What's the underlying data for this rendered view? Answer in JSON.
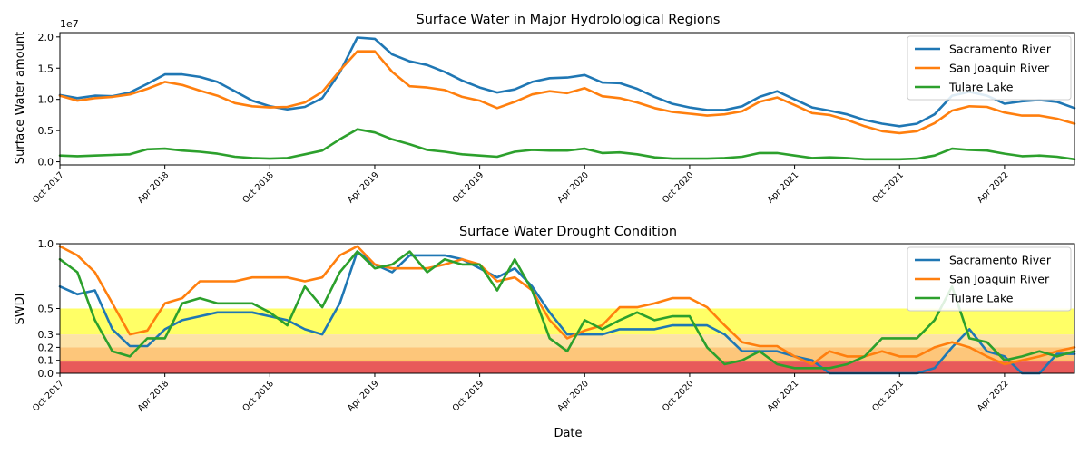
{
  "colors": {
    "sacramento": "#1f77b4",
    "san_joaquin": "#ff7f0e",
    "tulare": "#2ca02c",
    "band_d0": "#ffff66",
    "band_d1": "#fde3a7",
    "band_d2": "#fdc67a",
    "band_d3": "#ffa500",
    "band_d4": "#e85a5a"
  },
  "chart_data": [
    {
      "type": "line",
      "title": "Surface Water in Major Hydrolological Regions",
      "xlabel": "",
      "ylabel": "Surface Water amount",
      "y_offset_label": "1e7",
      "y_scale": 10000000,
      "x_ticks": [
        "Oct 2017",
        "Apr 2018",
        "Oct 2018",
        "Apr 2019",
        "Oct 2019",
        "Apr 2020",
        "Oct 2020",
        "Apr 2021",
        "Oct 2021",
        "Apr 2022"
      ],
      "x_start": "2017-10",
      "x_step": "1 month",
      "xlim": [
        0,
        58
      ],
      "ylim": [
        -0.05,
        2.07
      ],
      "y_ticks": [
        "0.0",
        "0.5",
        "1.0",
        "1.5",
        "2.0"
      ],
      "legend_position": "top-right",
      "grid": false,
      "series": [
        {
          "name": "Sacramento River",
          "color_key": "sacramento",
          "values": [
            1.07,
            1.02,
            1.06,
            1.05,
            1.11,
            1.25,
            1.4,
            1.4,
            1.36,
            1.28,
            1.13,
            0.98,
            0.89,
            0.84,
            0.88,
            1.02,
            1.43,
            1.99,
            1.97,
            1.72,
            1.61,
            1.55,
            1.44,
            1.3,
            1.19,
            1.11,
            1.16,
            1.28,
            1.34,
            1.35,
            1.39,
            1.27,
            1.26,
            1.17,
            1.04,
            0.93,
            0.87,
            0.83,
            0.83,
            0.89,
            1.04,
            1.13,
            1.0,
            0.87,
            0.82,
            0.76,
            0.67,
            0.61,
            0.57,
            0.61,
            0.76,
            1.06,
            1.12,
            1.06,
            0.93,
            0.97,
            0.99,
            0.96,
            0.86
          ]
        },
        {
          "name": "San Joaquin River",
          "color_key": "san_joaquin",
          "values": [
            1.06,
            0.98,
            1.02,
            1.04,
            1.08,
            1.17,
            1.28,
            1.23,
            1.14,
            1.06,
            0.94,
            0.89,
            0.87,
            0.88,
            0.95,
            1.12,
            1.46,
            1.77,
            1.77,
            1.44,
            1.21,
            1.19,
            1.15,
            1.04,
            0.98,
            0.86,
            0.96,
            1.08,
            1.13,
            1.1,
            1.18,
            1.05,
            1.02,
            0.95,
            0.86,
            0.8,
            0.77,
            0.74,
            0.76,
            0.81,
            0.96,
            1.03,
            0.91,
            0.78,
            0.75,
            0.67,
            0.57,
            0.49,
            0.46,
            0.49,
            0.62,
            0.82,
            0.89,
            0.88,
            0.79,
            0.74,
            0.74,
            0.69,
            0.61
          ]
        },
        {
          "name": "Tulare Lake",
          "color_key": "tulare",
          "values": [
            0.1,
            0.09,
            0.1,
            0.11,
            0.12,
            0.2,
            0.21,
            0.18,
            0.16,
            0.13,
            0.08,
            0.06,
            0.05,
            0.06,
            0.12,
            0.18,
            0.36,
            0.52,
            0.47,
            0.36,
            0.28,
            0.19,
            0.16,
            0.12,
            0.1,
            0.08,
            0.16,
            0.19,
            0.18,
            0.18,
            0.21,
            0.14,
            0.15,
            0.12,
            0.07,
            0.05,
            0.05,
            0.05,
            0.06,
            0.08,
            0.14,
            0.14,
            0.1,
            0.06,
            0.07,
            0.06,
            0.04,
            0.04,
            0.04,
            0.05,
            0.1,
            0.21,
            0.19,
            0.18,
            0.13,
            0.09,
            0.1,
            0.08,
            0.04
          ]
        }
      ]
    },
    {
      "type": "line",
      "title": "Surface Water Drought Condition",
      "xlabel": "Date",
      "ylabel": "SWDI",
      "x_ticks": [
        "Oct 2017",
        "Apr 2018",
        "Oct 2018",
        "Apr 2019",
        "Oct 2019",
        "Apr 2020",
        "Oct 2020",
        "Apr 2021",
        "Oct 2021",
        "Apr 2022"
      ],
      "x_start": "2017-10",
      "x_step": "1 month",
      "xlim": [
        0,
        58
      ],
      "ylim": [
        0,
        1.0
      ],
      "y_ticks": [
        0.0,
        0.1,
        0.2,
        0.3,
        0.5,
        1.0
      ],
      "y_tick_labels": [
        "0.0",
        "0.1",
        "0.2",
        "0.3",
        "0.5",
        "1.0"
      ],
      "legend_position": "top-right",
      "grid": false,
      "bands": [
        {
          "from": 0.3,
          "to": 0.5,
          "color_key": "band_d0"
        },
        {
          "from": 0.2,
          "to": 0.3,
          "color_key": "band_d1"
        },
        {
          "from": 0.1,
          "to": 0.2,
          "color_key": "band_d2"
        },
        {
          "from": 0.09,
          "to": 0.1,
          "color_key": "band_d3"
        },
        {
          "from": 0.0,
          "to": 0.09,
          "color_key": "band_d4"
        }
      ],
      "series": [
        {
          "name": "Sacramento River",
          "color_key": "sacramento",
          "values": [
            0.67,
            0.61,
            0.64,
            0.34,
            0.21,
            0.21,
            0.34,
            0.41,
            0.44,
            0.47,
            0.47,
            0.47,
            0.44,
            0.41,
            0.34,
            0.3,
            0.54,
            0.94,
            0.84,
            0.78,
            0.91,
            0.91,
            0.91,
            0.88,
            0.81,
            0.74,
            0.81,
            0.67,
            0.47,
            0.3,
            0.3,
            0.3,
            0.34,
            0.34,
            0.34,
            0.37,
            0.37,
            0.37,
            0.3,
            0.17,
            0.17,
            0.17,
            0.13,
            0.1,
            0.0,
            0.0,
            0.0,
            0.0,
            0.0,
            0.0,
            0.04,
            0.2,
            0.34,
            0.17,
            0.13,
            0.0,
            0.0,
            0.15,
            0.15
          ]
        },
        {
          "name": "San Joaquin River",
          "color_key": "san_joaquin",
          "values": [
            0.98,
            0.91,
            0.78,
            0.54,
            0.3,
            0.33,
            0.54,
            0.58,
            0.71,
            0.71,
            0.71,
            0.74,
            0.74,
            0.74,
            0.71,
            0.74,
            0.91,
            0.98,
            0.84,
            0.81,
            0.81,
            0.81,
            0.84,
            0.88,
            0.84,
            0.71,
            0.74,
            0.64,
            0.41,
            0.27,
            0.33,
            0.37,
            0.51,
            0.51,
            0.54,
            0.58,
            0.58,
            0.51,
            0.37,
            0.24,
            0.21,
            0.21,
            0.13,
            0.07,
            0.17,
            0.13,
            0.13,
            0.17,
            0.13,
            0.13,
            0.2,
            0.24,
            0.2,
            0.13,
            0.07,
            0.1,
            0.13,
            0.17,
            0.2
          ]
        },
        {
          "name": "Tulare Lake",
          "color_key": "tulare",
          "values": [
            0.88,
            0.78,
            0.41,
            0.17,
            0.13,
            0.27,
            0.27,
            0.54,
            0.58,
            0.54,
            0.54,
            0.54,
            0.47,
            0.37,
            0.67,
            0.51,
            0.78,
            0.94,
            0.81,
            0.84,
            0.94,
            0.78,
            0.88,
            0.84,
            0.84,
            0.64,
            0.88,
            0.64,
            0.27,
            0.17,
            0.41,
            0.34,
            0.41,
            0.47,
            0.41,
            0.44,
            0.44,
            0.2,
            0.07,
            0.1,
            0.17,
            0.07,
            0.04,
            0.04,
            0.04,
            0.07,
            0.13,
            0.27,
            0.27,
            0.27,
            0.41,
            0.67,
            0.27,
            0.24,
            0.1,
            0.13,
            0.17,
            0.13,
            0.17
          ]
        }
      ]
    }
  ]
}
